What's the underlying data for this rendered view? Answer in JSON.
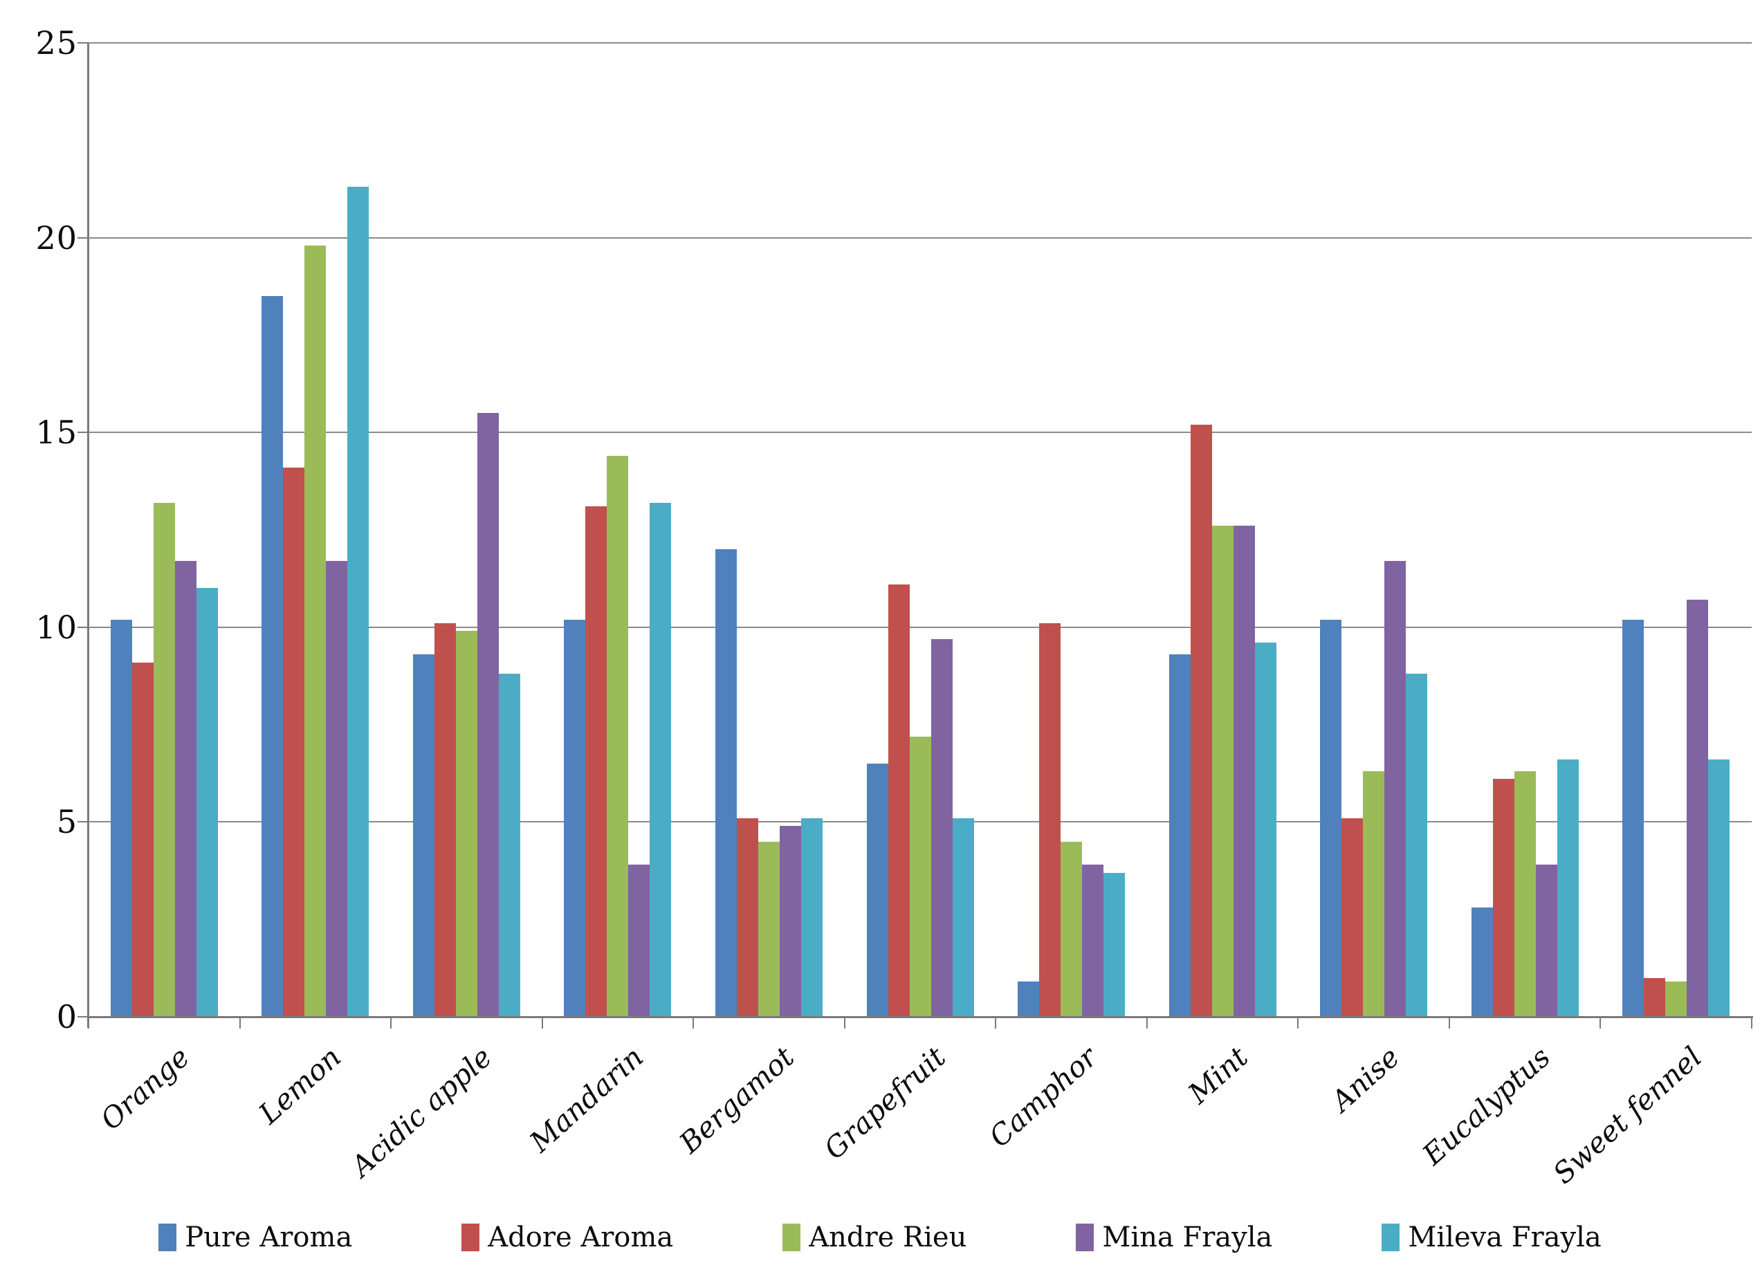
{
  "chart_data": {
    "type": "bar",
    "title": "",
    "categories": [
      "Orange",
      "Lemon",
      "Acidic apple",
      "Mandarin",
      "Bergamot",
      "Grapefruit",
      "Camphor",
      "Mint",
      "Anise",
      "Eucalyptus",
      "Sweet fennel"
    ],
    "series": [
      {
        "name": "Pure Aroma",
        "color": "#4F81BD",
        "values": [
          10.2,
          18.5,
          9.3,
          10.2,
          12.0,
          6.5,
          0.9,
          9.3,
          10.2,
          2.8,
          10.2
        ]
      },
      {
        "name": "Adore Aroma",
        "color": "#C0504D",
        "values": [
          9.1,
          14.1,
          10.1,
          13.1,
          5.1,
          11.1,
          10.1,
          15.2,
          5.1,
          6.1,
          1.0
        ]
      },
      {
        "name": "Andre Rieu",
        "color": "#9BBB59",
        "values": [
          13.2,
          19.8,
          9.9,
          14.4,
          4.5,
          7.2,
          4.5,
          12.6,
          6.3,
          6.3,
          0.9
        ]
      },
      {
        "name": "Mina Frayla",
        "color": "#8064A2",
        "values": [
          11.7,
          11.7,
          15.5,
          3.9,
          4.9,
          9.7,
          3.9,
          12.6,
          11.7,
          3.9,
          10.7
        ]
      },
      {
        "name": "Mileva Frayla",
        "color": "#4BACC6",
        "values": [
          11.0,
          21.3,
          8.8,
          13.2,
          5.1,
          5.1,
          3.7,
          9.6,
          8.8,
          6.6,
          6.6
        ]
      }
    ],
    "y_axis": {
      "min": 0,
      "max": 25,
      "tick_interval": 5,
      "tick_labels": [
        "0",
        "5",
        "10",
        "15",
        "20",
        "25"
      ]
    },
    "x_axis": {
      "label": ""
    },
    "grid": true,
    "legend_position": "bottom",
    "colors": {
      "gridline": "#8a8a8a",
      "axis": "#7a7a7a",
      "text": "#0c0c0c",
      "background": "#ffffff"
    }
  }
}
